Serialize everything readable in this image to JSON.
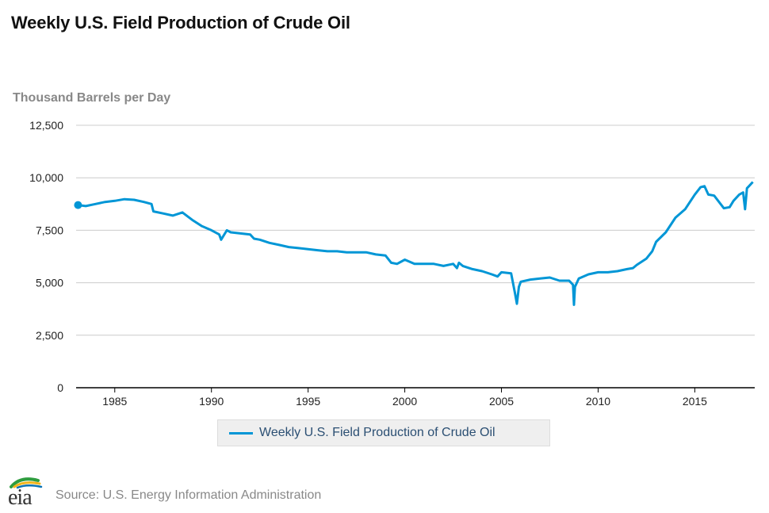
{
  "title": "Weekly U.S. Field Production of Crude Oil",
  "source": "Source: U.S. Energy Information Administration",
  "logo": {
    "text": "eia",
    "arc_colors": [
      "#2e9d3f",
      "#f2b51c",
      "#0a72b5"
    ]
  },
  "chart_data": {
    "type": "line",
    "title": "Weekly U.S. Field Production of Crude Oil",
    "ylabel": "Thousand Barrels per Day",
    "xlabel": "",
    "ylim": [
      0,
      12500
    ],
    "xlim": [
      1983.0,
      2018.1
    ],
    "yticks": [
      0,
      2500,
      5000,
      7500,
      10000,
      12500
    ],
    "ytick_labels": [
      "0",
      "2,500",
      "5,000",
      "7,500",
      "10,000",
      "12,500"
    ],
    "xticks": [
      1985,
      1990,
      1995,
      2000,
      2005,
      2010,
      2015
    ],
    "xtick_labels": [
      "1985",
      "1990",
      "1995",
      "2000",
      "2005",
      "2010",
      "2015"
    ],
    "grid": true,
    "legend_position": "bottom-center",
    "color": "#0096d6",
    "series": [
      {
        "name": "Weekly U.S. Field Production of Crude Oil",
        "x": [
          1983.1,
          1983.5,
          1984.0,
          1984.5,
          1985.0,
          1985.5,
          1986.0,
          1986.5,
          1986.9,
          1987.0,
          1987.5,
          1988.0,
          1988.5,
          1989.0,
          1989.5,
          1990.0,
          1990.4,
          1990.5,
          1990.8,
          1991.0,
          1991.5,
          1992.0,
          1992.2,
          1992.5,
          1993.0,
          1993.5,
          1994.0,
          1994.5,
          1995.0,
          1995.5,
          1996.0,
          1996.5,
          1997.0,
          1997.5,
          1998.0,
          1998.5,
          1999.0,
          1999.3,
          1999.6,
          2000.0,
          2000.5,
          2001.0,
          2001.5,
          2002.0,
          2002.5,
          2002.7,
          2002.8,
          2003.0,
          2003.5,
          2004.0,
          2004.5,
          2004.8,
          2005.0,
          2005.5,
          2005.7,
          2005.8,
          2005.9,
          2006.0,
          2006.5,
          2007.0,
          2007.5,
          2008.0,
          2008.5,
          2008.7,
          2008.75,
          2008.8,
          2009.0,
          2009.5,
          2010.0,
          2010.5,
          2011.0,
          2011.5,
          2011.8,
          2012.0,
          2012.5,
          2012.8,
          2013.0,
          2013.5,
          2014.0,
          2014.5,
          2015.0,
          2015.3,
          2015.5,
          2015.7,
          2016.0,
          2016.5,
          2016.8,
          2017.0,
          2017.3,
          2017.5,
          2017.6,
          2017.7,
          2017.8,
          2018.0
        ],
        "values": [
          8700,
          8650,
          8750,
          8850,
          8900,
          8980,
          8950,
          8850,
          8750,
          8400,
          8300,
          8200,
          8350,
          8000,
          7700,
          7500,
          7300,
          7050,
          7500,
          7400,
          7350,
          7300,
          7100,
          7050,
          6900,
          6800,
          6700,
          6650,
          6600,
          6550,
          6500,
          6500,
          6450,
          6450,
          6450,
          6350,
          6300,
          5950,
          5900,
          6100,
          5900,
          5900,
          5900,
          5800,
          5900,
          5700,
          5950,
          5800,
          5650,
          5550,
          5400,
          5300,
          5500,
          5450,
          4500,
          4000,
          4800,
          5050,
          5150,
          5200,
          5250,
          5100,
          5100,
          4900,
          3950,
          4800,
          5200,
          5400,
          5500,
          5500,
          5550,
          5650,
          5700,
          5850,
          6150,
          6500,
          6950,
          7400,
          8100,
          8500,
          9200,
          9550,
          9600,
          9200,
          9150,
          8550,
          8600,
          8900,
          9200,
          9300,
          8500,
          9500,
          9600,
          9800
        ]
      }
    ]
  }
}
